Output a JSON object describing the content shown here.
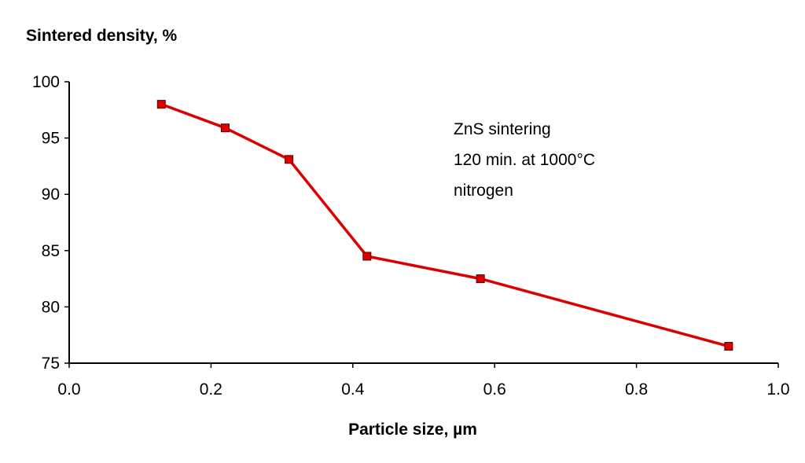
{
  "chart_data": {
    "type": "line",
    "ylabel": "Sintered density, %",
    "xlabel": "Particle size, µm",
    "xlim": [
      0.0,
      1.0
    ],
    "ylim": [
      75,
      100
    ],
    "x_ticks": [
      "0.0",
      "0.2",
      "0.4",
      "0.6",
      "0.8",
      "1.0"
    ],
    "y_ticks": [
      "75",
      "80",
      "85",
      "90",
      "95",
      "100"
    ],
    "grid": false,
    "series": [
      {
        "color": "#dd0000",
        "marker": "square",
        "x": [
          0.13,
          0.22,
          0.31,
          0.42,
          0.58,
          0.93
        ],
        "y": [
          98.0,
          95.9,
          93.1,
          84.5,
          82.5,
          76.5
        ]
      }
    ],
    "annotation": [
      "ZnS sintering",
      "120 min. at 1000°C",
      "nitrogen"
    ]
  }
}
